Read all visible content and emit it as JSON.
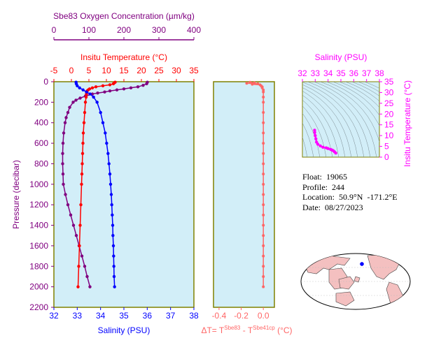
{
  "colors": {
    "oxygen": "#800080",
    "temperature": "#ff0000",
    "salinity": "#0000ff",
    "delta": "#ff6666",
    "panel_bg": "#d2eef8",
    "frame": "#808000",
    "ts_axes": "#ff00ff"
  },
  "info": {
    "float": "Float:  19065",
    "profile": "Profile:  244",
    "location": "Location:  50.9°N  -171.2°E",
    "date": "Date:  08/27/2023"
  },
  "chart_data": [
    {
      "type": "line",
      "panel": "main-profile",
      "y_axis": {
        "label": "Pressure (decibar)",
        "range": [
          0,
          2200
        ],
        "ticks": [
          0,
          200,
          400,
          600,
          800,
          1000,
          1200,
          1400,
          1600,
          1800,
          2000,
          2200
        ],
        "inverted": true
      },
      "x_axes": [
        {
          "id": "salinity",
          "label": "Salinity (PSU)",
          "position": "bottom",
          "range": [
            32,
            38
          ],
          "ticks": [
            32,
            33,
            34,
            35,
            36,
            37,
            38
          ]
        },
        {
          "id": "temperature",
          "label": "Insitu Temperature (°C)",
          "position": "top",
          "range": [
            -5,
            35
          ],
          "ticks": [
            -5,
            0,
            5,
            10,
            15,
            20,
            25,
            30,
            35
          ]
        },
        {
          "id": "oxygen",
          "label": "Sbe83 Oxygen Concentration (µm/kg)",
          "position": "top-outer",
          "range": [
            0,
            400
          ],
          "ticks": [
            0,
            100,
            200,
            300,
            400
          ]
        }
      ],
      "series": [
        {
          "axis": "oxygen",
          "pressure": [
            5,
            20,
            35,
            50,
            60,
            70,
            80,
            90,
            100,
            110,
            120,
            140,
            160,
            180,
            200,
            250,
            300,
            350,
            400,
            500,
            600,
            700,
            800,
            900,
            1000,
            1100,
            1200,
            1300,
            1400,
            1500,
            1600,
            1700,
            1800,
            1900,
            2000
          ],
          "values": [
            267,
            265,
            255,
            240,
            220,
            200,
            180,
            160,
            145,
            125,
            110,
            90,
            75,
            63,
            55,
            45,
            40,
            35,
            32,
            28,
            26,
            25,
            25,
            26,
            27,
            33,
            40,
            48,
            56,
            64,
            72,
            80,
            88,
            95,
            103
          ]
        },
        {
          "axis": "temperature",
          "pressure": [
            5,
            10,
            20,
            30,
            40,
            50,
            60,
            70,
            80,
            90,
            100,
            120,
            150,
            200,
            300,
            400,
            500,
            600,
            700,
            800,
            900,
            1000,
            1200,
            1400,
            1600,
            1800,
            2000
          ],
          "values": [
            12.5,
            12.3,
            12.0,
            11.0,
            9.0,
            7.0,
            6.0,
            5.2,
            4.8,
            4.5,
            4.3,
            4.3,
            4.2,
            4.0,
            3.8,
            3.6,
            3.4,
            3.3,
            3.2,
            3.1,
            3.0,
            2.9,
            2.7,
            2.5,
            2.3,
            2.1,
            1.9
          ]
        },
        {
          "axis": "salinity",
          "pressure": [
            5,
            20,
            40,
            60,
            80,
            100,
            120,
            150,
            200,
            300,
            400,
            500,
            600,
            700,
            800,
            900,
            1000,
            1100,
            1200,
            1300,
            1400,
            1500,
            1600,
            1700,
            1800,
            1900,
            2000
          ],
          "values": [
            32.95,
            32.96,
            33.0,
            33.1,
            33.25,
            33.4,
            33.55,
            33.7,
            33.85,
            34.0,
            34.1,
            34.2,
            34.26,
            34.32,
            34.36,
            34.4,
            34.43,
            34.46,
            34.48,
            34.5,
            34.52,
            34.53,
            34.55,
            34.56,
            34.57,
            34.58,
            34.6
          ]
        }
      ]
    },
    {
      "type": "line",
      "panel": "delta-temperature",
      "x_axis": {
        "label": "ΔT= T^Sbe83 - T^Sbe41cp (°C)",
        "range": [
          -0.45,
          0.1
        ],
        "ticks": [
          -0.4,
          -0.2,
          0.0
        ]
      },
      "y_axis": {
        "range": [
          0,
          2200
        ],
        "inverted": true
      },
      "series": [
        {
          "pressure": [
            5,
            10,
            15,
            20,
            25,
            30,
            40,
            50,
            60,
            80,
            100,
            150,
            200,
            300,
            400,
            500,
            600,
            700,
            800,
            900,
            1000,
            1100,
            1200,
            1300,
            1400,
            1500,
            1600,
            1700,
            1800,
            1900,
            2000
          ],
          "values": [
            -0.12,
            -0.08,
            -0.15,
            -0.05,
            -0.1,
            -0.03,
            -0.02,
            -0.01,
            -0.01,
            0.0,
            0.0,
            0.0,
            0.0,
            0.0,
            0.0,
            0.0,
            0.0,
            0.0,
            0.0,
            0.0,
            0.0,
            0.0,
            0.0,
            0.0,
            0.0,
            0.0,
            0.0,
            0.0,
            0.0,
            0.0,
            0.0
          ]
        }
      ]
    },
    {
      "type": "scatter",
      "panel": "ts-diagram",
      "x_axis": {
        "label": "Salinity (PSU)",
        "range": [
          32,
          38
        ],
        "ticks": [
          32,
          33,
          34,
          35,
          36,
          37,
          38
        ]
      },
      "y_axis": {
        "label": "Insitu Temperature (°C)",
        "range": [
          0,
          35
        ],
        "ticks": [
          0,
          5,
          10,
          15,
          20,
          25,
          30,
          35
        ]
      },
      "series": [
        {
          "salinity": [
            32.95,
            32.96,
            33.0,
            33.05,
            33.1,
            33.2,
            33.4,
            33.6,
            33.85,
            34.0,
            34.2,
            34.3,
            34.4,
            34.5,
            34.6
          ],
          "temperature": [
            12.5,
            11.5,
            10.0,
            8.5,
            7.0,
            6.0,
            5.2,
            4.6,
            4.3,
            4.0,
            3.6,
            3.3,
            3.0,
            2.5,
            1.9
          ]
        }
      ]
    }
  ]
}
